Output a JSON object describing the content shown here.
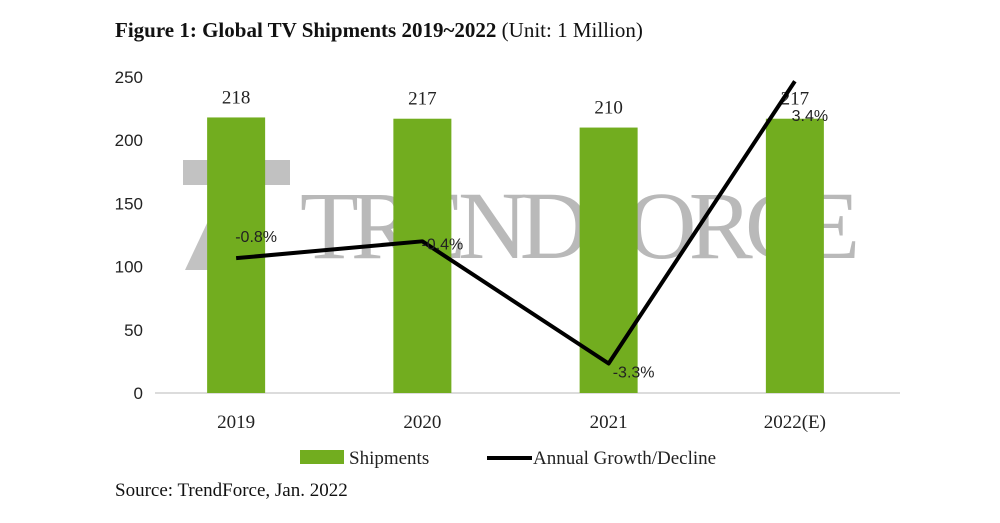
{
  "chart_data": {
    "type": "bar",
    "title": "Figure 1: Global TV Shipments 2019~2022",
    "subtitle": "(Unit: 1 Million)",
    "categories": [
      "2019",
      "2020",
      "2021",
      "2022(E)"
    ],
    "series": [
      {
        "name": "Shipments",
        "type": "bar",
        "axis": "primary",
        "values": [
          218,
          217,
          210,
          217
        ],
        "labels": [
          "218",
          "217",
          "210",
          "217"
        ],
        "color": "#72ad1f"
      },
      {
        "name": "Annual Growth/Decline",
        "type": "line",
        "axis": "secondary",
        "values": [
          -0.8,
          -0.4,
          -3.3,
          3.4
        ],
        "labels": [
          "-0.8%",
          "-0.4%",
          "-3.3%",
          "3.4%"
        ],
        "color": "#000000"
      }
    ],
    "ylim": [
      0,
      250
    ],
    "yticks": [
      "0",
      "50",
      "100",
      "150",
      "200",
      "250"
    ],
    "y2lim": [
      -4,
      3.5
    ],
    "y2_axis_visible": false,
    "grid": false,
    "legend_placement": "bottom",
    "source": "Source: TrendForce, Jan. 2022"
  },
  "watermark": {
    "logo_text": "TRENDFORCE"
  }
}
